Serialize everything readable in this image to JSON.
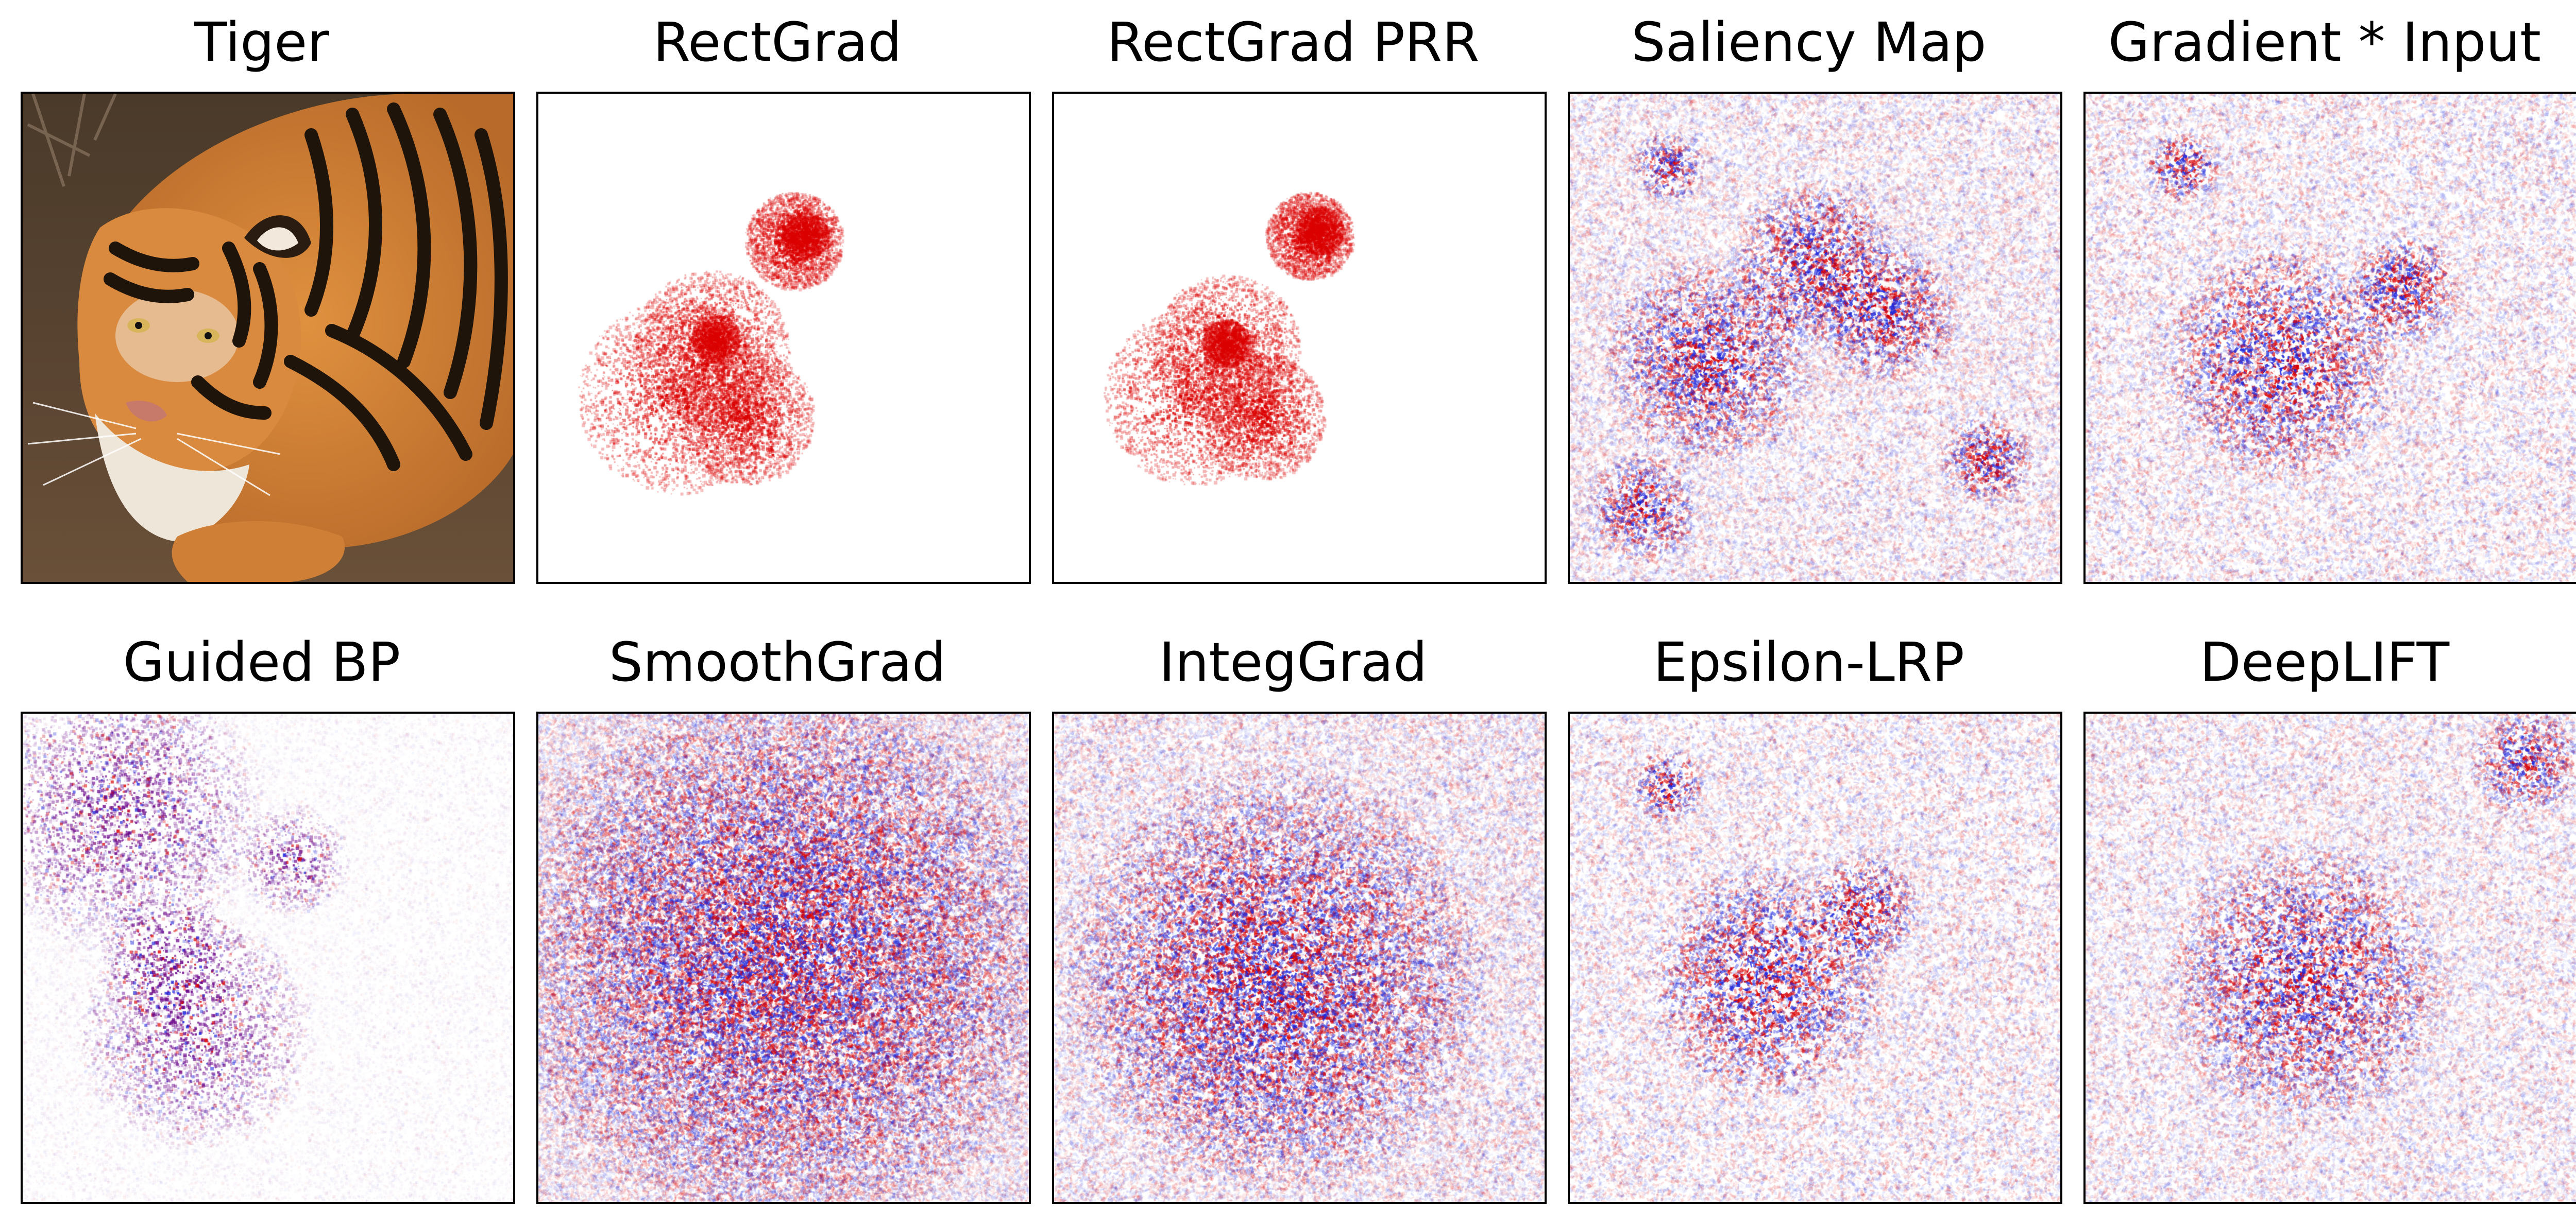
{
  "figure": {
    "panels": [
      {
        "id": "tiger",
        "title": "Tiger",
        "kind": "photo"
      },
      {
        "id": "rectgrad",
        "title": "RectGrad",
        "kind": "sparse-red"
      },
      {
        "id": "rectgrad-prr",
        "title": "RectGrad PRR",
        "kind": "sparse-red"
      },
      {
        "id": "saliency-map",
        "title": "Saliency Map",
        "kind": "signed-noise"
      },
      {
        "id": "gradient-input",
        "title": "Gradient * Input",
        "kind": "signed-noise"
      },
      {
        "id": "guided-bp",
        "title": "Guided BP",
        "kind": "purple-noise"
      },
      {
        "id": "smoothgrad",
        "title": "SmoothGrad",
        "kind": "signed-noise-dense"
      },
      {
        "id": "integgrad",
        "title": "IntegGrad",
        "kind": "signed-noise"
      },
      {
        "id": "epsilon-lrp",
        "title": "Epsilon-LRP",
        "kind": "signed-noise"
      },
      {
        "id": "deeplift",
        "title": "DeepLIFT",
        "kind": "signed-noise"
      }
    ],
    "colors": {
      "positive": "#dc0000",
      "negative": "#1e28dc",
      "guided": "#6e0a8c",
      "tiger_fur": "#d2823c",
      "tiger_stripe": "#1e140a",
      "ground": "#55412d"
    }
  }
}
